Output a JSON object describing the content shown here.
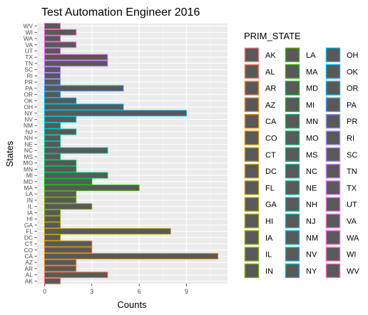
{
  "chart_data": {
    "type": "bar",
    "orientation": "horizontal",
    "title": "Test Automation Engineer 2016",
    "xlabel": "Counts",
    "ylabel": "States",
    "xlim": [
      0,
      11.6
    ],
    "xticks": [
      0,
      3,
      6,
      9
    ],
    "grid": true,
    "legend_title": "PRIM_STATE",
    "legend_position": "right",
    "categories": [
      "AK",
      "AL",
      "AR",
      "AZ",
      "CA",
      "CO",
      "CT",
      "DC",
      "FL",
      "GA",
      "HI",
      "IA",
      "IL",
      "IN",
      "LA",
      "MA",
      "MD",
      "MI",
      "MN",
      "MO",
      "MS",
      "NC",
      "NE",
      "NH",
      "NJ",
      "NM",
      "NV",
      "NY",
      "OH",
      "OK",
      "OR",
      "PA",
      "PR",
      "RI",
      "SC",
      "TN",
      "TX",
      "UT",
      "VA",
      "WA",
      "WI",
      "WV"
    ],
    "values": [
      1,
      4,
      2,
      2,
      11,
      3,
      3,
      1,
      8,
      1,
      1,
      1,
      3,
      2,
      2,
      6,
      3,
      4,
      2,
      2,
      1,
      4,
      1,
      1,
      2,
      1,
      2,
      9,
      5,
      2,
      1,
      5,
      1,
      1,
      1,
      4,
      4,
      1,
      2,
      1,
      2,
      1
    ],
    "colors": [
      "#F8766D",
      "#F37B59",
      "#ED8141",
      "#E7861B",
      "#E08B00",
      "#D89000",
      "#CF9400",
      "#C59900",
      "#BB9D00",
      "#AFA100",
      "#A3A500",
      "#95A900",
      "#85AD00",
      "#72B000",
      "#5BB300",
      "#39B600",
      "#00B81F",
      "#00BA42",
      "#00BC59",
      "#00BE6C",
      "#00BF7D",
      "#00C08D",
      "#00C19C",
      "#00C1AA",
      "#00C0B8",
      "#00BFC4",
      "#00BDD0",
      "#00BADB",
      "#00B7E6",
      "#00B2F0",
      "#00ACFC",
      "#35A2FF",
      "#7C96FF",
      "#9F8CFF",
      "#B983FF",
      "#CD79FF",
      "#DE71F9",
      "#EB69EF",
      "#F564E3",
      "#FC61D5",
      "#FF61C6",
      "#FF64B6"
    ],
    "bar_fill": "#595959"
  }
}
